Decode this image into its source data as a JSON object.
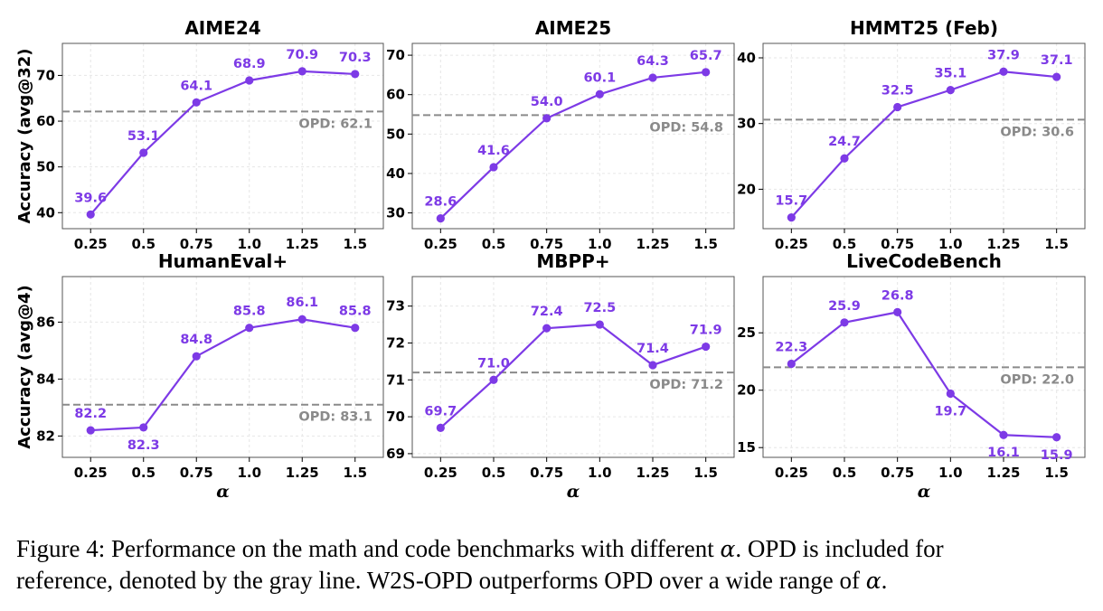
{
  "figure": {
    "caption_prefix": "Figure 4: Performance on the math and code benchmarks with different ",
    "caption_symbol": "α",
    "caption_line1_rest": ". OPD is included for",
    "caption_line2": "reference, denoted by the gray line. W2S-OPD outperforms OPD over a wide range of ",
    "caption_end": "."
  },
  "style": {
    "series_color": "#7d3ae6",
    "reference_color": "#8a8a8a"
  },
  "chart_data": [
    {
      "type": "line",
      "title": "AIME24",
      "ylabel": "Accuracy (avg@32)",
      "xlabel": "",
      "x": [
        "0.25",
        "0.5",
        "0.75",
        "1.0",
        "1.25",
        "1.5"
      ],
      "values": [
        39.6,
        53.1,
        64.1,
        68.9,
        70.9,
        70.3
      ],
      "data_labels": [
        "39.6",
        "53.1",
        "64.1",
        "68.9",
        "70.9",
        "70.3"
      ],
      "reference": {
        "value": 62.1,
        "label": "OPD: 62.1"
      },
      "ylim": [
        36.5,
        77
      ],
      "yticks": [
        40,
        50,
        60,
        70
      ],
      "grid": true
    },
    {
      "type": "line",
      "title": "AIME25",
      "ylabel": "",
      "xlabel": "",
      "x": [
        "0.25",
        "0.5",
        "0.75",
        "1.0",
        "1.25",
        "1.5"
      ],
      "values": [
        28.6,
        41.6,
        54.0,
        60.1,
        64.3,
        65.7
      ],
      "data_labels": [
        "28.6",
        "41.6",
        "54.0",
        "60.1",
        "64.3",
        "65.7"
      ],
      "reference": {
        "value": 54.8,
        "label": "OPD: 54.8"
      },
      "ylim": [
        26,
        73
      ],
      "yticks": [
        30,
        40,
        50,
        60,
        70
      ],
      "grid": true
    },
    {
      "type": "line",
      "title": "HMMT25 (Feb)",
      "ylabel": "",
      "xlabel": "",
      "x": [
        "0.25",
        "0.5",
        "0.75",
        "1.0",
        "1.25",
        "1.5"
      ],
      "values": [
        15.7,
        24.7,
        32.5,
        35.1,
        37.9,
        37.1
      ],
      "data_labels": [
        "15.7",
        "24.7",
        "32.5",
        "35.1",
        "37.9",
        "37.1"
      ],
      "reference": {
        "value": 30.6,
        "label": "OPD: 30.6"
      },
      "ylim": [
        14,
        42.2
      ],
      "yticks": [
        20,
        30,
        40
      ],
      "grid": true
    },
    {
      "type": "line",
      "title": "HumanEval+",
      "ylabel": "Accuracy (avg@4)",
      "xlabel": "α",
      "x": [
        "0.25",
        "0.5",
        "0.75",
        "1.0",
        "1.25",
        "1.5"
      ],
      "values": [
        82.2,
        82.3,
        84.8,
        85.8,
        86.1,
        85.8
      ],
      "data_labels": [
        "82.2",
        "82.3",
        "84.8",
        "85.8",
        "86.1",
        "85.8"
      ],
      "reference": {
        "value": 83.1,
        "label": "OPD: 83.1"
      },
      "ylim": [
        81.25,
        87.6
      ],
      "yticks": [
        82,
        84,
        86
      ],
      "grid": true
    },
    {
      "type": "line",
      "title": "MBPP+",
      "ylabel": "",
      "xlabel": "α",
      "x": [
        "0.25",
        "0.5",
        "0.75",
        "1.0",
        "1.25",
        "1.5"
      ],
      "values": [
        69.7,
        71.0,
        72.4,
        72.5,
        71.4,
        71.9
      ],
      "data_labels": [
        "69.7",
        "71.0",
        "72.4",
        "72.5",
        "71.4",
        "71.9"
      ],
      "reference": {
        "value": 71.2,
        "label": "OPD: 71.2"
      },
      "ylim": [
        68.9,
        73.8
      ],
      "yticks": [
        69,
        70,
        71,
        72,
        73
      ],
      "grid": true
    },
    {
      "type": "line",
      "title": "LiveCodeBench",
      "ylabel": "",
      "xlabel": "α",
      "x": [
        "0.25",
        "0.5",
        "0.75",
        "1.0",
        "1.25",
        "1.5"
      ],
      "values": [
        22.3,
        25.9,
        26.8,
        19.7,
        16.1,
        15.9
      ],
      "data_labels": [
        "22.3",
        "25.9",
        "26.8",
        "19.7",
        "16.1",
        "15.9"
      ],
      "reference": {
        "value": 22.0,
        "label": "OPD: 22.0"
      },
      "ylim": [
        14.15,
        29.9
      ],
      "yticks": [
        15,
        20,
        25
      ],
      "grid": true
    }
  ]
}
